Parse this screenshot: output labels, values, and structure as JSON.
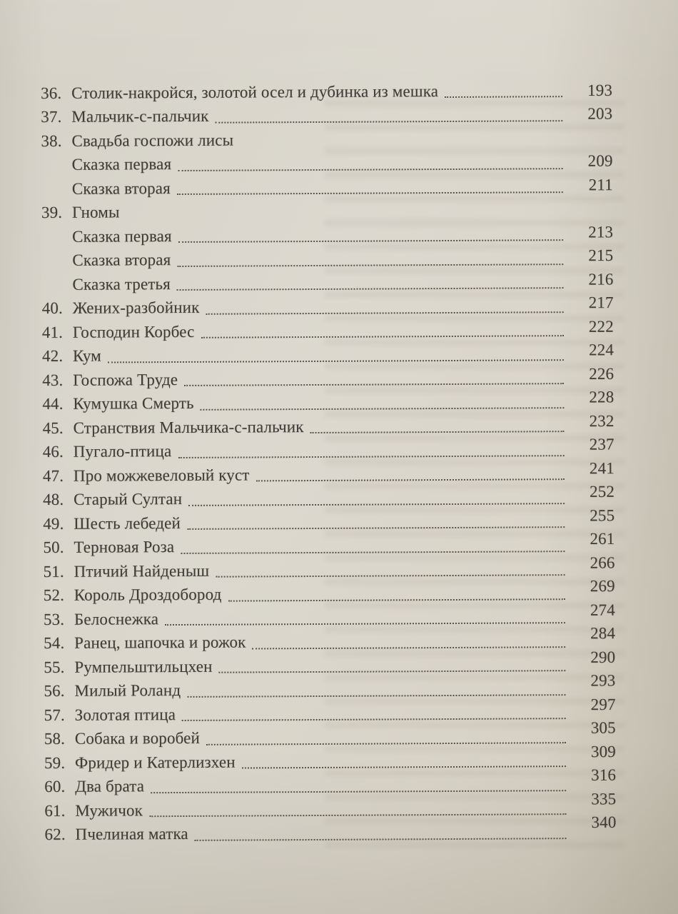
{
  "colors": {
    "paper": "#d8d4c9",
    "ink": "#403d37",
    "dot_leader": "#57544c"
  },
  "toc": {
    "entries": [
      {
        "num": "36.",
        "title": "Столик-накройся, золотой осел и дубинка из мешка",
        "page": "193"
      },
      {
        "num": "37.",
        "title": "Мальчик-с-пальчик",
        "page": "203"
      },
      {
        "num": "38.",
        "title": "Свадьба госпожи лисы",
        "page": ""
      },
      {
        "num": "",
        "title": "Сказка первая",
        "page": "209"
      },
      {
        "num": "",
        "title": "Сказка вторая",
        "page": "211"
      },
      {
        "num": "39.",
        "title": "Гномы",
        "page": ""
      },
      {
        "num": "",
        "title": "Сказка первая",
        "page": "213"
      },
      {
        "num": "",
        "title": "Сказка вторая",
        "page": "215"
      },
      {
        "num": "",
        "title": "Сказка третья",
        "page": "216"
      },
      {
        "num": "40.",
        "title": "Жених-разбойник",
        "page": "217"
      },
      {
        "num": "41.",
        "title": "Господин Корбес",
        "page": "222"
      },
      {
        "num": "42.",
        "title": "Кум",
        "page": "224"
      },
      {
        "num": "43.",
        "title": "Госпожа Труде",
        "page": "226"
      },
      {
        "num": "44.",
        "title": "Кумушка Смерть",
        "page": "228"
      },
      {
        "num": "45.",
        "title": "Странствия Мальчика-с-пальчик",
        "page": "232"
      },
      {
        "num": "46.",
        "title": "Пугало-птица",
        "page": "237"
      },
      {
        "num": "47.",
        "title": "Про можжевеловый куст",
        "page": "241"
      },
      {
        "num": "48.",
        "title": "Старый Султан",
        "page": "252"
      },
      {
        "num": "49.",
        "title": "Шесть лебедей",
        "page": "255"
      },
      {
        "num": "50.",
        "title": "Терновая Роза",
        "page": "261"
      },
      {
        "num": "51.",
        "title": "Птичий Найденыш",
        "page": "266"
      },
      {
        "num": "52.",
        "title": "Король Дроздобород",
        "page": "269"
      },
      {
        "num": "53.",
        "title": "Белоснежка",
        "page": "274"
      },
      {
        "num": "54.",
        "title": "Ранец, шапочка и рожок",
        "page": "284"
      },
      {
        "num": "55.",
        "title": "Румпельштильцхен",
        "page": "290"
      },
      {
        "num": "56.",
        "title": "Милый Роланд",
        "page": "293"
      },
      {
        "num": "57.",
        "title": "Золотая птица",
        "page": "297"
      },
      {
        "num": "58.",
        "title": "Собака и воробей",
        "page": "305"
      },
      {
        "num": "59.",
        "title": "Фридер и Катерлизхен",
        "page": "309"
      },
      {
        "num": "60.",
        "title": "Два брата",
        "page": "316"
      },
      {
        "num": "61.",
        "title": "Мужичок",
        "page": "335"
      },
      {
        "num": "62.",
        "title": "Пчелиная матка",
        "page": "340"
      }
    ]
  }
}
